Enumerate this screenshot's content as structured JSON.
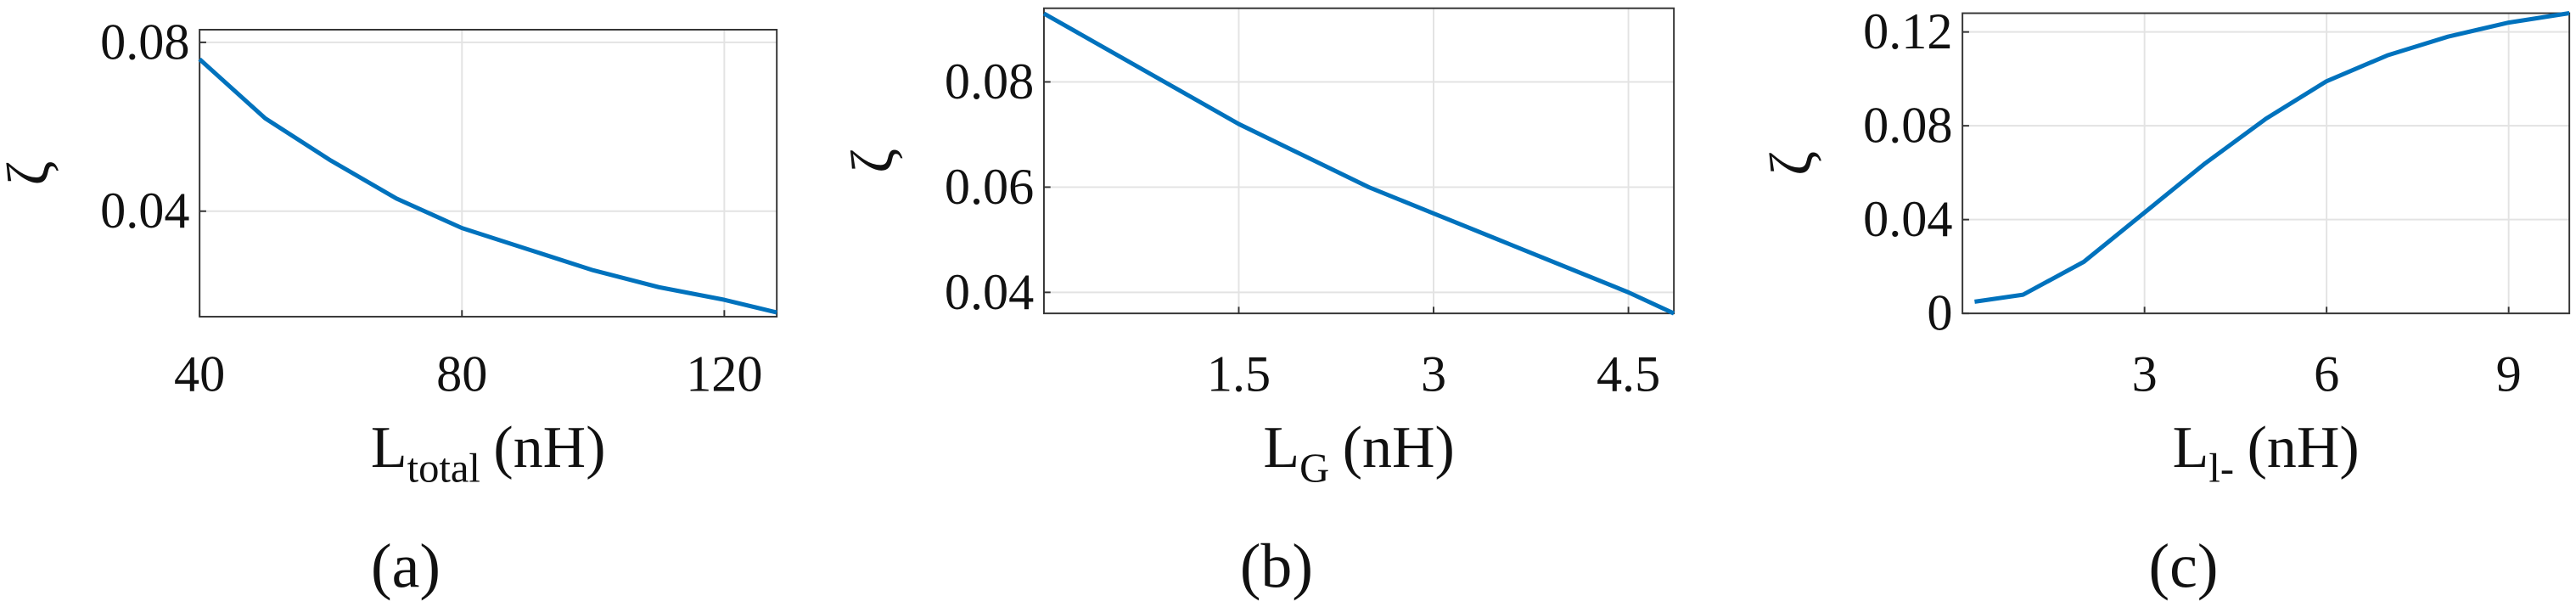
{
  "chart_data": [
    {
      "type": "line",
      "panel": "(a)",
      "ylabel": "ζ",
      "xlabel": {
        "main": "L",
        "sub": "total",
        "unit": "(nH)"
      },
      "x": [
        40,
        50,
        60,
        70,
        80,
        90,
        100,
        110,
        120,
        128
      ],
      "values": [
        0.076,
        0.062,
        0.052,
        0.043,
        0.036,
        0.031,
        0.026,
        0.022,
        0.019,
        0.016
      ],
      "color": "#0072bd",
      "xlim": [
        40,
        128
      ],
      "ylim": [
        0.015,
        0.083
      ],
      "xticks": [
        40,
        80,
        120
      ],
      "yticks": [
        0.04,
        0.08
      ],
      "grid": true
    },
    {
      "type": "line",
      "panel": "(b)",
      "ylabel": "ζ",
      "xlabel": {
        "main": "L",
        "sub": "G",
        "unit": "(nH)"
      },
      "x": [
        0,
        0.5,
        1,
        1.5,
        2,
        2.5,
        3,
        3.5,
        4,
        4.5,
        4.85
      ],
      "values": [
        0.093,
        0.086,
        0.079,
        0.072,
        0.066,
        0.06,
        0.055,
        0.05,
        0.045,
        0.04,
        0.036
      ],
      "color": "#0072bd",
      "xlim": [
        0,
        4.85
      ],
      "ylim": [
        0.036,
        0.094
      ],
      "xticks": [
        1.5,
        3,
        4.5
      ],
      "yticks": [
        0.04,
        0.06,
        0.08
      ],
      "grid": true
    },
    {
      "type": "line",
      "panel": "(c)",
      "ylabel": "ζ",
      "xlabel": {
        "main": "L",
        "sub": "l-",
        "unit": "(nH)"
      },
      "x": [
        0.2,
        1,
        2,
        3,
        4,
        5,
        6,
        7,
        8,
        9,
        10
      ],
      "values": [
        0.005,
        0.008,
        0.022,
        0.043,
        0.064,
        0.083,
        0.099,
        0.11,
        0.118,
        0.124,
        0.128
      ],
      "color": "#0072bd",
      "xlim": [
        0,
        10
      ],
      "ylim": [
        0,
        0.128
      ],
      "xticks": [
        3,
        6,
        9
      ],
      "yticks": [
        0,
        0.04,
        0.08,
        0.12
      ],
      "grid": true
    }
  ]
}
